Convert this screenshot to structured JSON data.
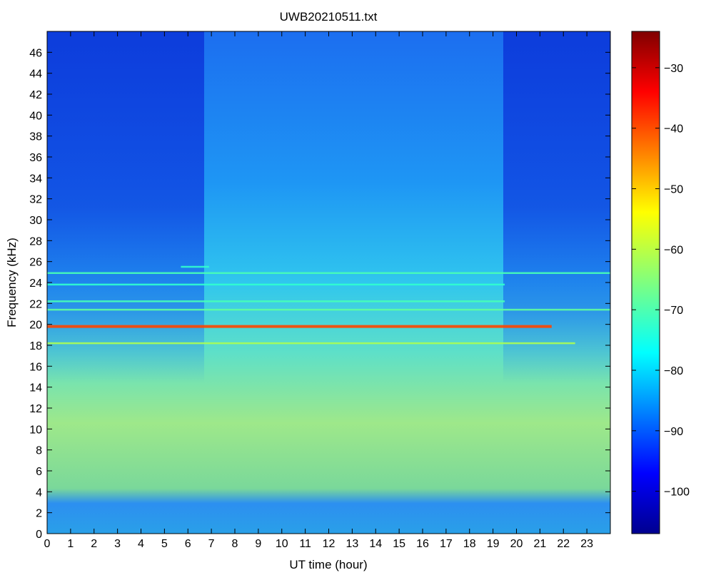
{
  "chart_data": {
    "type": "heatmap",
    "title": "UWB20210511.txt",
    "xlabel": "UT time (hour)",
    "ylabel": "Frequency (kHz)",
    "xlim": [
      0,
      24
    ],
    "ylim": [
      0,
      48
    ],
    "x_ticks": [
      "0",
      "1",
      "2",
      "3",
      "4",
      "5",
      "6",
      "7",
      "8",
      "9",
      "10",
      "11",
      "12",
      "13",
      "14",
      "15",
      "16",
      "17",
      "18",
      "19",
      "20",
      "21",
      "22",
      "23"
    ],
    "y_ticks": [
      "0",
      "2",
      "4",
      "6",
      "8",
      "10",
      "12",
      "14",
      "16",
      "18",
      "20",
      "22",
      "24",
      "26",
      "28",
      "30",
      "32",
      "34",
      "36",
      "38",
      "40",
      "42",
      "44",
      "46"
    ],
    "colormap": "jet",
    "colorbar": {
      "range": [
        -107,
        -24
      ],
      "ticks": [
        "-30",
        "-40",
        "-50",
        "-60",
        "-70",
        "-80",
        "-90",
        "-100"
      ]
    },
    "spectral_lines_khz": [
      {
        "freq": 19.8,
        "start_hour": 0,
        "end_hour": 21.5,
        "level_db": -40
      },
      {
        "freq": 18.2,
        "start_hour": 0,
        "end_hour": 22.5,
        "level_db": -62
      },
      {
        "freq": 21.4,
        "start_hour": 0,
        "end_hour": 24,
        "level_db": -68
      },
      {
        "freq": 22.2,
        "start_hour": 0,
        "end_hour": 19.5,
        "level_db": -70
      },
      {
        "freq": 24.9,
        "start_hour": 0,
        "end_hour": 24,
        "level_db": -70
      },
      {
        "freq": 23.8,
        "start_hour": 0,
        "end_hour": 19.5,
        "level_db": -72
      },
      {
        "freq": 25.5,
        "start_hour": 5.7,
        "end_hour": 6.9,
        "level_db": -72
      }
    ]
  }
}
